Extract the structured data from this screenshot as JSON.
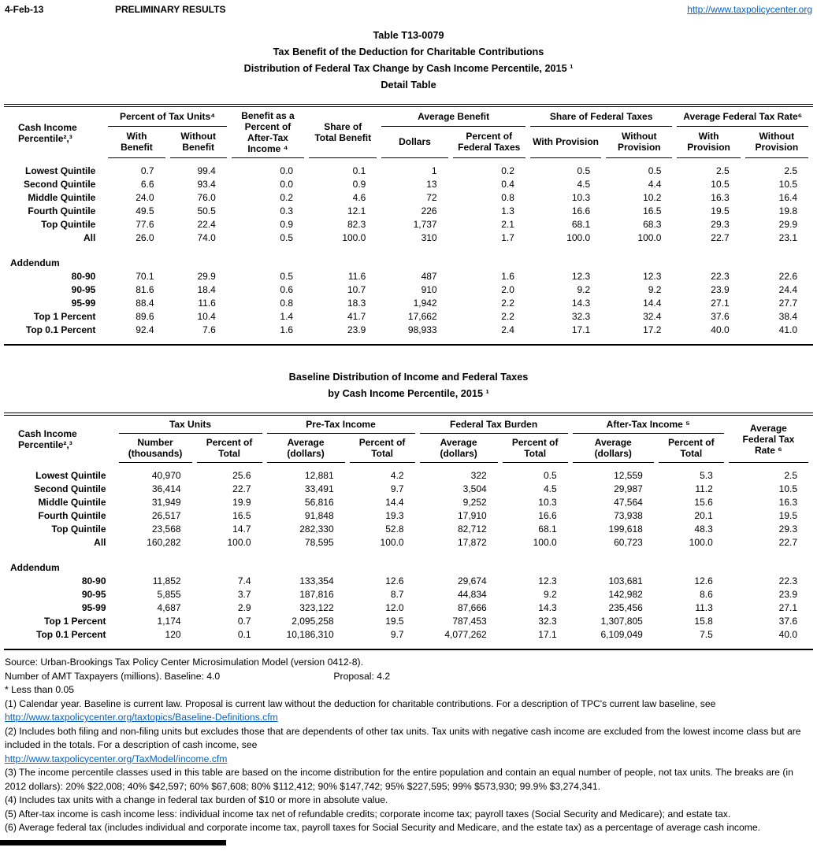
{
  "page_header": {
    "date": "4-Feb-13",
    "status": "PRELIMINARY RESULTS",
    "site_link": "http://www.taxpolicycenter.org"
  },
  "title_block": {
    "table_number": "Table T13-0079",
    "title": "Tax Benefit of the Deduction for Charitable Contributions",
    "subtitle": "Distribution of Federal Tax Change by Cash Income Percentile, 2015 ¹",
    "table_type": "Detail Table"
  },
  "table1": {
    "header": {
      "cash_income": "Cash Income\nPercentile²,³",
      "pct_tax_units": "Percent of Tax Units⁴",
      "with_benefit": "With\nBenefit",
      "without_benefit": "Without\nBenefit",
      "benefit_pct_ati": "Benefit as a\nPercent of\nAfter-Tax\nIncome ⁴",
      "share_total_benefit": "Share of\nTotal Benefit",
      "average_benefit": "Average Benefit",
      "dollars": "Dollars",
      "pct_federal_taxes": "Percent of\nFederal Taxes",
      "share_federal_taxes": "Share of Federal Taxes",
      "with_provision": "With Provision",
      "without_provision": "Without\nProvision",
      "avg_federal_tax_rate": "Average Federal Tax Rate⁶",
      "rate_with_provision": "With\nProvision",
      "rate_without_provision": "Without\nProvision"
    },
    "rows": [
      {
        "label": "Lowest Quintile",
        "values": [
          "0.7",
          "99.4",
          "0.0",
          "0.1",
          "1",
          "0.2",
          "0.5",
          "0.5",
          "2.5",
          "2.5"
        ]
      },
      {
        "label": "Second Quintile",
        "values": [
          "6.6",
          "93.4",
          "0.0",
          "0.9",
          "13",
          "0.4",
          "4.5",
          "4.4",
          "10.5",
          "10.5"
        ]
      },
      {
        "label": "Middle Quintile",
        "values": [
          "24.0",
          "76.0",
          "0.2",
          "4.6",
          "72",
          "0.8",
          "10.3",
          "10.2",
          "16.3",
          "16.4"
        ]
      },
      {
        "label": "Fourth Quintile",
        "values": [
          "49.5",
          "50.5",
          "0.3",
          "12.1",
          "226",
          "1.3",
          "16.6",
          "16.5",
          "19.5",
          "19.8"
        ]
      },
      {
        "label": "Top Quintile",
        "values": [
          "77.6",
          "22.4",
          "0.9",
          "82.3",
          "1,737",
          "2.1",
          "68.1",
          "68.3",
          "29.3",
          "29.9"
        ]
      },
      {
        "label": "All",
        "values": [
          "26.0",
          "74.0",
          "0.5",
          "100.0",
          "310",
          "1.7",
          "100.0",
          "100.0",
          "22.7",
          "23.1"
        ]
      }
    ],
    "addendum_label": "Addendum",
    "addendum_rows": [
      {
        "label": "80-90",
        "values": [
          "70.1",
          "29.9",
          "0.5",
          "11.6",
          "487",
          "1.6",
          "12.3",
          "12.3",
          "22.3",
          "22.6"
        ]
      },
      {
        "label": "90-95",
        "values": [
          "81.6",
          "18.4",
          "0.6",
          "10.7",
          "910",
          "2.0",
          "9.2",
          "9.2",
          "23.9",
          "24.4"
        ]
      },
      {
        "label": "95-99",
        "values": [
          "88.4",
          "11.6",
          "0.8",
          "18.3",
          "1,942",
          "2.2",
          "14.3",
          "14.4",
          "27.1",
          "27.7"
        ]
      },
      {
        "label": "Top 1 Percent",
        "values": [
          "89.6",
          "10.4",
          "1.4",
          "41.7",
          "17,662",
          "2.2",
          "32.3",
          "32.4",
          "37.6",
          "38.4"
        ]
      },
      {
        "label": "Top 0.1 Percent",
        "values": [
          "92.4",
          "7.6",
          "1.6",
          "23.9",
          "98,933",
          "2.4",
          "17.1",
          "17.2",
          "40.0",
          "41.0"
        ]
      }
    ]
  },
  "table2_title": {
    "line1": "Baseline Distribution of Income and Federal Taxes",
    "line2": "by Cash Income Percentile, 2015 ¹"
  },
  "table2": {
    "header": {
      "cash_income": "Cash Income\nPercentile²,³",
      "tax_units": "Tax Units",
      "pre_tax_income": "Pre-Tax Income",
      "federal_tax_burden": "Federal Tax Burden",
      "after_tax_income": "After-Tax Income ⁵",
      "avg_federal_tax_rate": "Average\nFederal Tax\nRate ⁶",
      "number_thousands": "Number\n(thousands)",
      "percent_of_total": "Percent of\nTotal",
      "average_dollars": "Average\n(dollars)"
    },
    "rows": [
      {
        "label": "Lowest Quintile",
        "values": [
          "40,970",
          "25.6",
          "12,881",
          "4.2",
          "322",
          "0.5",
          "12,559",
          "5.3",
          "2.5"
        ]
      },
      {
        "label": "Second Quintile",
        "values": [
          "36,414",
          "22.7",
          "33,491",
          "9.7",
          "3,504",
          "4.5",
          "29,987",
          "11.2",
          "10.5"
        ]
      },
      {
        "label": "Middle Quintile",
        "values": [
          "31,949",
          "19.9",
          "56,816",
          "14.4",
          "9,252",
          "10.3",
          "47,564",
          "15.6",
          "16.3"
        ]
      },
      {
        "label": "Fourth Quintile",
        "values": [
          "26,517",
          "16.5",
          "91,848",
          "19.3",
          "17,910",
          "16.6",
          "73,938",
          "20.1",
          "19.5"
        ]
      },
      {
        "label": "Top Quintile",
        "values": [
          "23,568",
          "14.7",
          "282,330",
          "52.8",
          "82,712",
          "68.1",
          "199,618",
          "48.3",
          "29.3"
        ]
      },
      {
        "label": "All",
        "values": [
          "160,282",
          "100.0",
          "78,595",
          "100.0",
          "17,872",
          "100.0",
          "60,723",
          "100.0",
          "22.7"
        ]
      }
    ],
    "addendum_label": "Addendum",
    "addendum_rows": [
      {
        "label": "80-90",
        "values": [
          "11,852",
          "7.4",
          "133,354",
          "12.6",
          "29,674",
          "12.3",
          "103,681",
          "12.6",
          "22.3"
        ]
      },
      {
        "label": "90-95",
        "values": [
          "5,855",
          "3.7",
          "187,816",
          "8.7",
          "44,834",
          "9.2",
          "142,982",
          "8.6",
          "23.9"
        ]
      },
      {
        "label": "95-99",
        "values": [
          "4,687",
          "2.9",
          "323,122",
          "12.0",
          "87,666",
          "14.3",
          "235,456",
          "11.3",
          "27.1"
        ]
      },
      {
        "label": "Top 1 Percent",
        "values": [
          "1,174",
          "0.7",
          "2,095,258",
          "19.5",
          "787,453",
          "32.3",
          "1,307,805",
          "15.8",
          "37.6"
        ]
      },
      {
        "label": "Top 0.1 Percent",
        "values": [
          "120",
          "0.1",
          "10,186,310",
          "9.7",
          "4,077,262",
          "17.1",
          "6,109,049",
          "7.5",
          "40.0"
        ]
      }
    ]
  },
  "footer": {
    "source": "Source: Urban-Brookings Tax Policy Center Microsimulation Model (version 0412-8).",
    "amt_label": "Number of AMT Taxpayers (millions).  Baseline: 4.0",
    "amt_proposal": "Proposal: 4.2",
    "less_than": "* Less than 0.05",
    "note1": "(1) Calendar year. Baseline is current law.  Proposal is current law without the deduction for charitable contributions.  For a description of TPC's current law baseline, see",
    "link1": "http://www.taxpolicycenter.org/taxtopics/Baseline-Definitions.cfm",
    "note2": "(2) Includes both filing and non-filing units but excludes those that are dependents of other tax units. Tax units with negative cash income are excluded from the lowest income class but are included in the totals. For a description of cash income, see",
    "link2": "http://www.taxpolicycenter.org/TaxModel/income.cfm",
    "note3": "(3) The income percentile classes used in this table are based on the income distribution for the entire population and contain an equal number of people, not tax units. The breaks are (in 2012 dollars): 20% $22,008; 40% $42,597; 60% $67,608; 80% $112,412; 90% $147,742; 95% $227,595; 99% $573,930; 99.9% $3,274,341.",
    "note4": "(4) Includes tax units with a change in federal tax burden of $10 or more in absolute value.",
    "note5": "(5) After-tax income is cash income less: individual income tax net of refundable credits; corporate income tax; payroll taxes (Social Security and Medicare); and estate tax.",
    "note6": "(6) Average federal tax (includes individual and corporate income tax, payroll taxes for Social Security and Medicare, and the estate tax) as a percentage of average cash income."
  }
}
